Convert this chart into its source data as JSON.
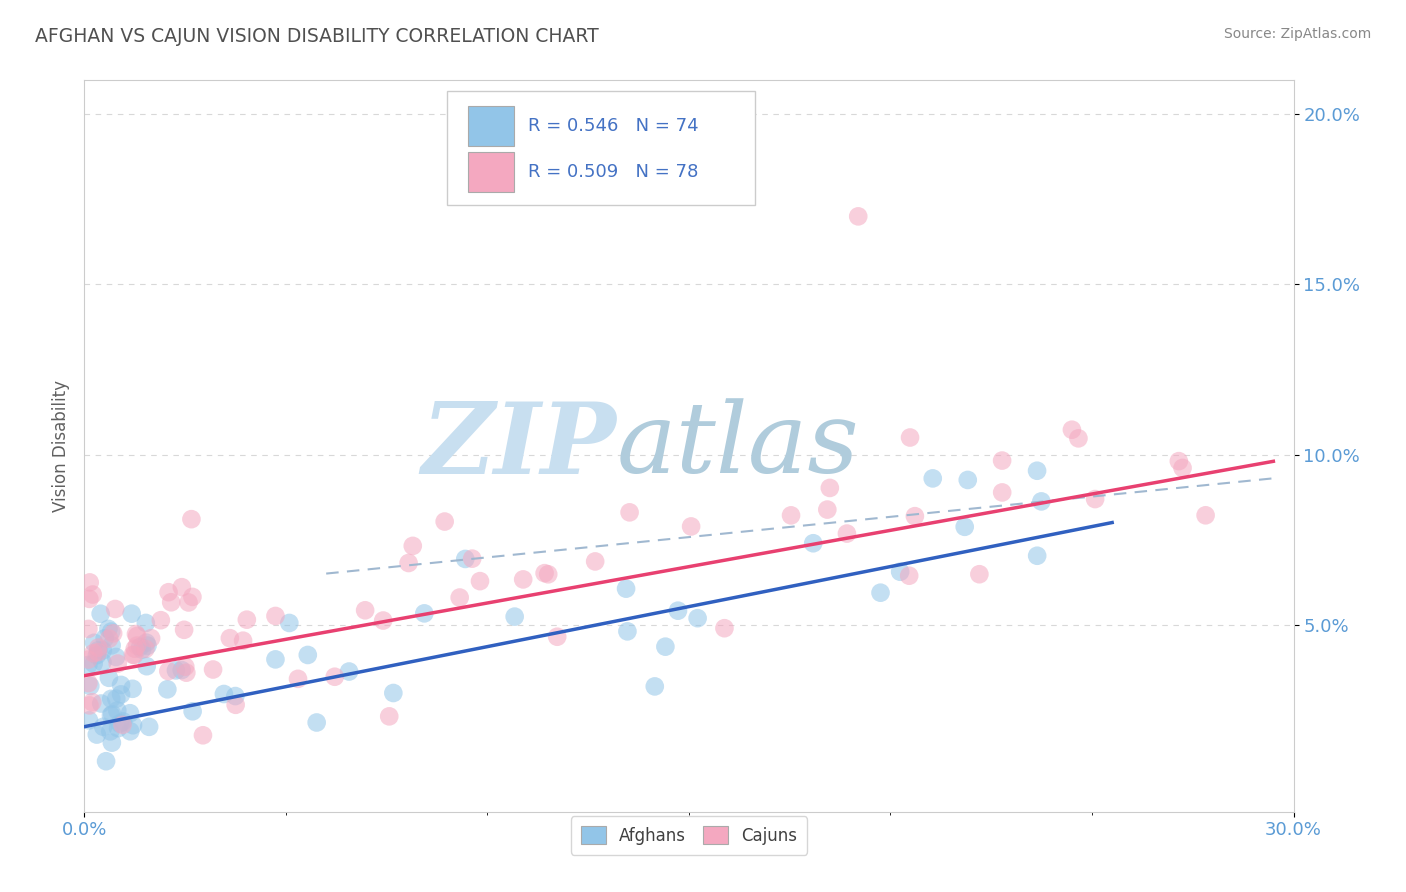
{
  "title": "AFGHAN VS CAJUN VISION DISABILITY CORRELATION CHART",
  "source": "Source: ZipAtlas.com",
  "ylabel": "Vision Disability",
  "xlim": [
    0.0,
    0.3
  ],
  "ylim": [
    -0.005,
    0.21
  ],
  "ytick_vals": [
    0.05,
    0.1,
    0.15,
    0.2
  ],
  "ytick_labels": [
    "5.0%",
    "10.0%",
    "15.0%",
    "20.0%"
  ],
  "xtick_vals": [
    0.0,
    0.3
  ],
  "xtick_labels": [
    "0.0%",
    "30.0%"
  ],
  "afghan_R": 0.546,
  "afghan_N": 74,
  "cajun_R": 0.509,
  "cajun_N": 78,
  "afghan_color": "#92c5e8",
  "cajun_color": "#f4a8c0",
  "afghan_line_color": "#3060c0",
  "cajun_line_color": "#e84070",
  "dashed_line_color": "#a0b8d0",
  "title_color": "#505050",
  "axis_label_color": "#5b9bd5",
  "legend_r_color": "#000000",
  "legend_n_color": "#4472c4",
  "watermark_zip_color": "#c8dff0",
  "watermark_atlas_color": "#b0ccdc",
  "background_color": "#ffffff",
  "grid_color": "#d8d8d8",
  "afghan_line_x": [
    0.0,
    0.255
  ],
  "afghan_line_y": [
    0.02,
    0.08
  ],
  "cajun_line_x": [
    0.0,
    0.295
  ],
  "cajun_line_y": [
    0.035,
    0.098
  ],
  "cajun_dashed_line_x": [
    0.06,
    0.295
  ],
  "cajun_dashed_line_y": [
    0.065,
    0.093
  ]
}
